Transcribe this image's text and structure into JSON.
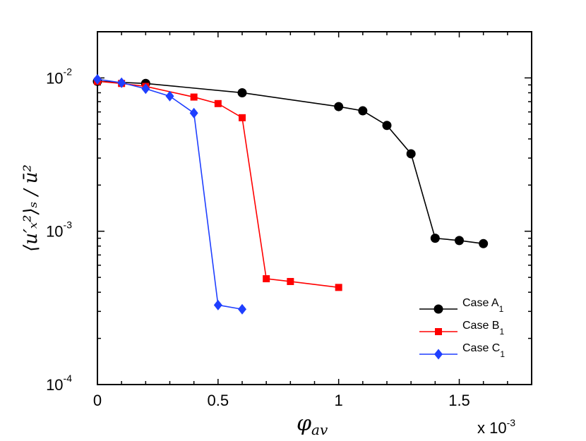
{
  "chart_data": {
    "type": "line",
    "yscale": "log",
    "xlim": [
      0,
      0.0018
    ],
    "ylim": [
      0.0001,
      0.02
    ],
    "x_ticks": [
      {
        "value": 0,
        "label": "0"
      },
      {
        "value": 0.0005,
        "label": "0.5"
      },
      {
        "value": 0.001,
        "label": "1"
      },
      {
        "value": 0.0015,
        "label": "1.5"
      }
    ],
    "x_multiplier": {
      "base": "x 10",
      "exponent": "-3"
    },
    "y_ticks": [
      {
        "value": 0.01,
        "base": "10",
        "exponent": "-2"
      },
      {
        "value": 0.001,
        "base": "10",
        "exponent": "-3"
      },
      {
        "value": 0.0001,
        "base": "10",
        "exponent": "-4"
      }
    ],
    "xlabel": {
      "symbol": "φ",
      "subscript": "av"
    },
    "ylabel": "⟨u′ₓ²⟩ₛ / ū²",
    "legend_position": "bottom-right",
    "series": [
      {
        "name": "Case A",
        "subscript": "1",
        "color": "#000000",
        "marker": "circle",
        "x": [
          0,
          0.0002,
          0.0006,
          0.001,
          0.0011,
          0.0012,
          0.0013,
          0.0014,
          0.0015,
          0.0016
        ],
        "y": [
          0.0095,
          0.0092,
          0.008,
          0.0065,
          0.0061,
          0.0049,
          0.0032,
          0.0009,
          0.00087,
          0.00083
        ]
      },
      {
        "name": "Case B",
        "subscript": "1",
        "color": "#ff0000",
        "marker": "square",
        "x": [
          0,
          0.0001,
          0.0002,
          0.0004,
          0.0005,
          0.0006,
          0.0007,
          0.0008,
          0.001
        ],
        "y": [
          0.0095,
          0.0092,
          0.0088,
          0.0075,
          0.0068,
          0.0055,
          0.00049,
          0.00047,
          0.00043
        ]
      },
      {
        "name": "Case C",
        "subscript": "1",
        "color": "#1f3fff",
        "marker": "diamond",
        "x": [
          0,
          0.0001,
          0.0002,
          0.0003,
          0.0004,
          0.0005,
          0.0006
        ],
        "y": [
          0.0098,
          0.0093,
          0.0085,
          0.0076,
          0.0059,
          0.00033,
          0.00031
        ]
      }
    ]
  }
}
